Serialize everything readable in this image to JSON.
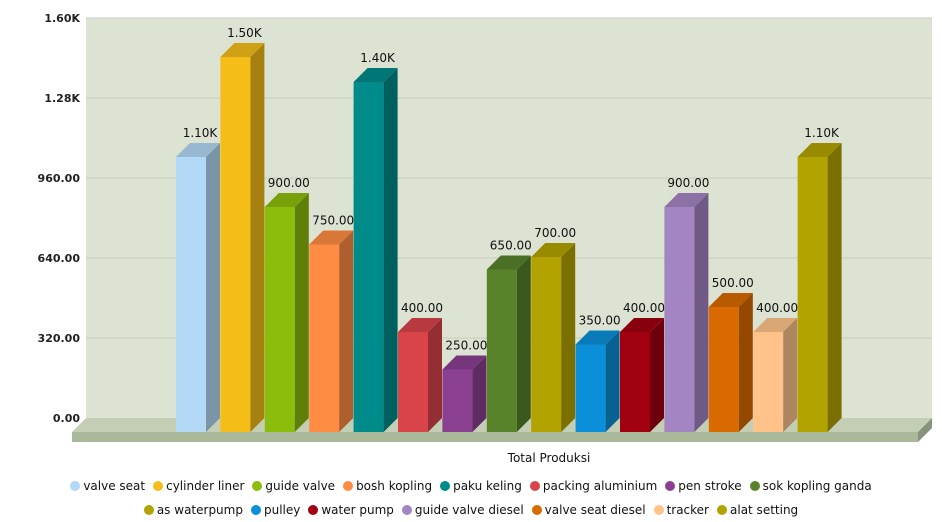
{
  "chart_data": {
    "type": "bar",
    "title": "",
    "xlabel": "Total Produksi",
    "ylabel": "",
    "ylim": [
      0,
      1600
    ],
    "yticks": [
      "0.00",
      "320.00",
      "640.00",
      "960.00",
      "1.28K",
      "1.60K"
    ],
    "ytick_values": [
      0,
      320,
      640,
      960,
      1280,
      1600
    ],
    "grid": true,
    "legend": "bottom",
    "series": [
      {
        "name": "valve seat",
        "value": 1100,
        "label": "1.10K",
        "color": "#b3d9f7"
      },
      {
        "name": "cylinder liner",
        "value": 1500,
        "label": "1.50K",
        "color": "#f5bd17"
      },
      {
        "name": "guide valve",
        "value": 900,
        "label": "900.00",
        "color": "#8cbc0c"
      },
      {
        "name": "bosh kopling",
        "value": 750,
        "label": "750.00",
        "color": "#ff8c42"
      },
      {
        "name": "paku keling",
        "value": 1400,
        "label": "1.40K",
        "color": "#008b8b"
      },
      {
        "name": "packing aluminium",
        "value": 400,
        "label": "400.00",
        "color": "#d9434a"
      },
      {
        "name": "pen stroke",
        "value": 250,
        "label": "250.00",
        "color": "#8b3f91"
      },
      {
        "name": "sok kopling ganda",
        "value": 650,
        "label": "650.00",
        "color": "#58832a"
      },
      {
        "name": "as waterpump",
        "value": 700,
        "label": "700.00",
        "color": "#b3a300"
      },
      {
        "name": "pulley",
        "value": 350,
        "label": "350.00",
        "color": "#0a8fd8"
      },
      {
        "name": "water pump",
        "value": 400,
        "label": "400.00",
        "color": "#a0000f"
      },
      {
        "name": "guide valve diesel",
        "value": 900,
        "label": "900.00",
        "color": "#a485c3"
      },
      {
        "name": "valve seat diesel",
        "value": 500,
        "label": "500.00",
        "color": "#d96a00"
      },
      {
        "name": "tracker",
        "value": 400,
        "label": "400.00",
        "color": "#ffc38a"
      },
      {
        "name": "alat setting",
        "value": 1100,
        "label": "1.10K",
        "color": "#b3a300"
      }
    ]
  },
  "colors": {
    "plot_background": "#dde3d2",
    "floor_front": "#a9b99a",
    "floor_top": "#c3ceb5",
    "gridline": "#c6ccbe"
  }
}
